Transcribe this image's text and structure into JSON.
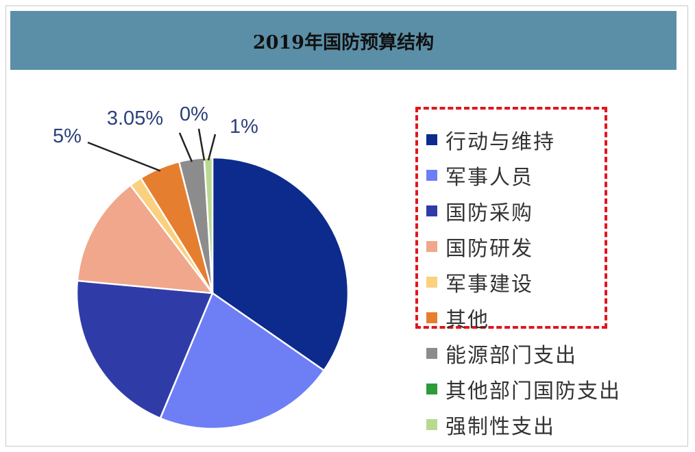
{
  "chart_data": {
    "type": "pie",
    "title": "2019年国防预算结构",
    "categories": [
      "行动与维持",
      "军事人员",
      "国防采购",
      "国防研发",
      "军事建设",
      "其他",
      "能源部门支出",
      "其他部门国防支出",
      "强制性支出"
    ],
    "values": [
      35.4,
      22.1,
      20.6,
      13.5,
      1.5,
      5,
      3.05,
      0,
      1
    ],
    "colors": [
      "#0c2b8d",
      "#6e7ef5",
      "#2f3ca8",
      "#f0a78b",
      "#fbd07e",
      "#e67e2f",
      "#8c8c8c",
      "#2c9b3a",
      "#b9d98e"
    ],
    "data_labels": [
      {
        "index": 5,
        "text": "5%"
      },
      {
        "index": 6,
        "text": "3.05%"
      },
      {
        "index": 7,
        "text": "0%"
      },
      {
        "index": 8,
        "text": "1%"
      }
    ],
    "legend_position": "right"
  }
}
